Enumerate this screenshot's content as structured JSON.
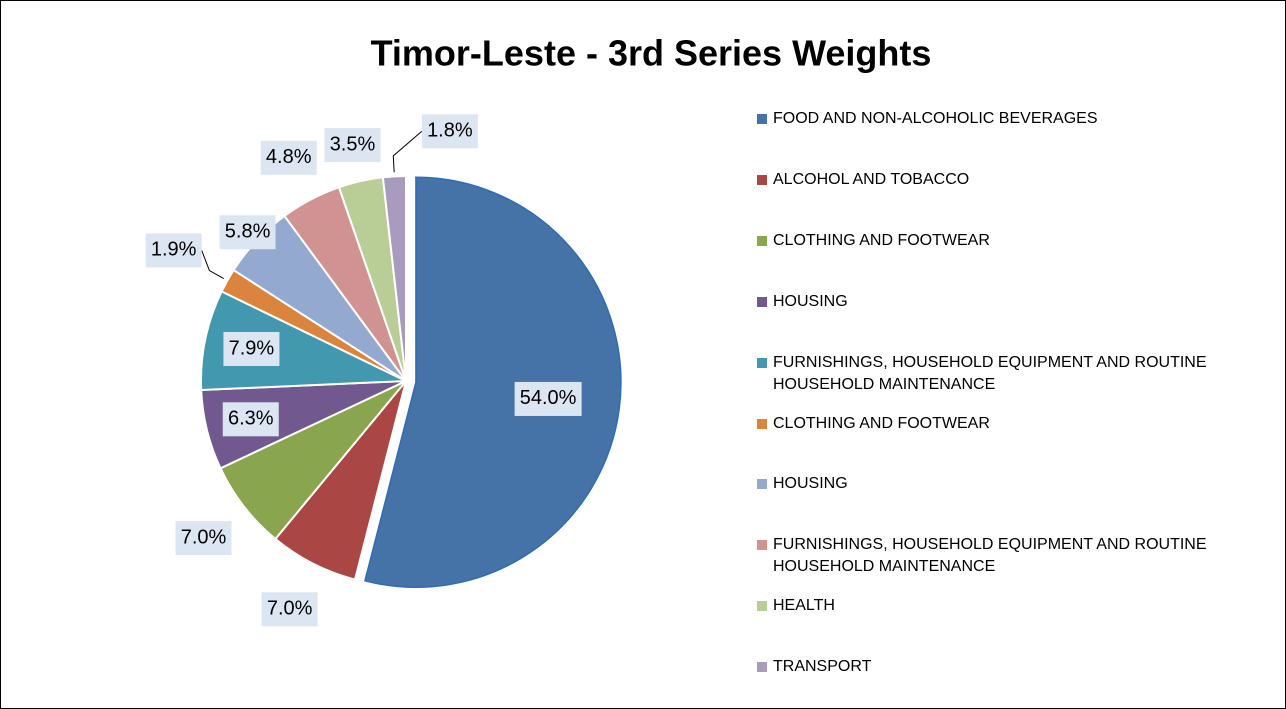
{
  "chart_data": {
    "type": "pie",
    "title": "Timor-Leste - 3rd Series Weights",
    "categories": [
      "FOOD AND NON-ALCOHOLIC BEVERAGES",
      "ALCOHOL AND TOBACCO",
      "CLOTHING AND FOOTWEAR",
      "HOUSING",
      "FURNISHINGS, HOUSEHOLD EQUIPMENT AND ROUTINE HOUSEHOLD MAINTENANCE",
      "CLOTHING AND FOOTWEAR",
      "HOUSING",
      "FURNISHINGS, HOUSEHOLD EQUIPMENT AND ROUTINE HOUSEHOLD MAINTENANCE",
      "HEALTH",
      "TRANSPORT"
    ],
    "values": [
      54.0,
      7.0,
      7.0,
      6.3,
      7.9,
      1.9,
      5.8,
      4.8,
      3.5,
      1.8
    ],
    "value_labels": [
      "54.0%",
      "7.0%",
      "7.0%",
      "6.3%",
      "7.9%",
      "1.9%",
      "5.8%",
      "4.8%",
      "3.5%",
      "1.8%"
    ],
    "colors": [
      "#4572A7",
      "#AA4643",
      "#89A54E",
      "#71588F",
      "#4198AF",
      "#DB843D",
      "#93A9CF",
      "#D19392",
      "#B9CD96",
      "#A99BBD"
    ],
    "legend": "right"
  }
}
